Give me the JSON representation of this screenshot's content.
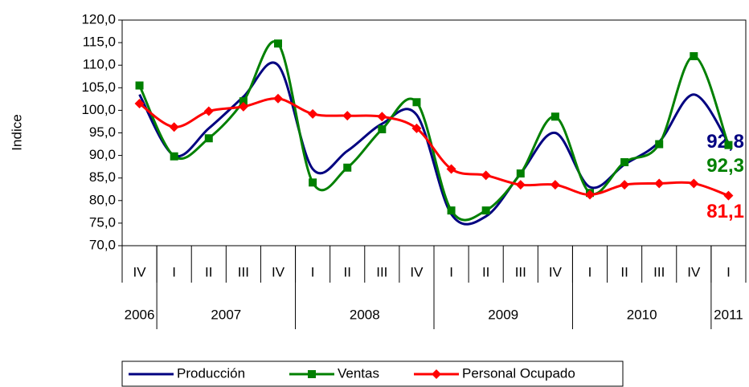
{
  "chart_data": {
    "type": "line",
    "y_label": "Indice",
    "categories": [
      "IV",
      "I",
      "II",
      "III",
      "IV",
      "I",
      "II",
      "III",
      "IV",
      "I",
      "II",
      "III",
      "IV",
      "I",
      "II",
      "III",
      "IV",
      "I"
    ],
    "years": [
      "2006",
      "2007",
      "2008",
      "2009",
      "2010",
      "2011"
    ],
    "year_spans": [
      1,
      4,
      4,
      4,
      4,
      1
    ],
    "ylim": [
      70,
      120
    ],
    "yticks": [
      {
        "value": 70,
        "label": "70,0"
      },
      {
        "value": 75,
        "label": "75,0"
      },
      {
        "value": 80,
        "label": "80,0"
      },
      {
        "value": 85,
        "label": "85,0"
      },
      {
        "value": 90,
        "label": "90,0"
      },
      {
        "value": 95,
        "label": "95,0"
      },
      {
        "value": 100,
        "label": "100,0"
      },
      {
        "value": 105,
        "label": "105,0"
      },
      {
        "value": 110,
        "label": "110,0"
      },
      {
        "value": 115,
        "label": "115,0"
      },
      {
        "value": 120,
        "label": "120,0"
      }
    ],
    "legend": "bottom",
    "series": [
      {
        "name": "Producción",
        "color": "#000080",
        "marker": "none",
        "values": [
          103.5,
          90,
          96,
          103,
          110,
          87,
          91,
          97,
          99,
          77,
          76.5,
          86,
          95,
          83,
          88,
          93,
          103.5,
          92.8
        ],
        "value_labels": [
          null,
          null,
          null,
          null,
          null,
          null,
          null,
          null,
          null,
          null,
          null,
          null,
          null,
          null,
          null,
          null,
          null,
          "92,8"
        ]
      },
      {
        "name": "Ventas",
        "color": "#008000",
        "marker": "square",
        "values": [
          105.5,
          89.8,
          93.8,
          102,
          114.8,
          84,
          87.3,
          95.8,
          101.8,
          77.8,
          77.8,
          86,
          98.6,
          81.7,
          88.5,
          92.5,
          112,
          92.3
        ],
        "value_labels": [
          null,
          null,
          null,
          null,
          null,
          null,
          null,
          null,
          null,
          null,
          null,
          null,
          null,
          null,
          null,
          null,
          null,
          "92,3"
        ]
      },
      {
        "name": "Personal Ocupado",
        "color": "#ff0000",
        "marker": "diamond",
        "values": [
          101.5,
          96.3,
          99.8,
          100.8,
          102.6,
          99.2,
          98.8,
          98.6,
          96,
          87,
          85.6,
          83.5,
          83.5,
          81.3,
          83.5,
          83.8,
          83.8,
          81.1
        ],
        "value_labels": [
          null,
          null,
          null,
          null,
          null,
          null,
          null,
          null,
          null,
          null,
          null,
          null,
          null,
          null,
          null,
          null,
          null,
          "81,1"
        ]
      }
    ]
  }
}
